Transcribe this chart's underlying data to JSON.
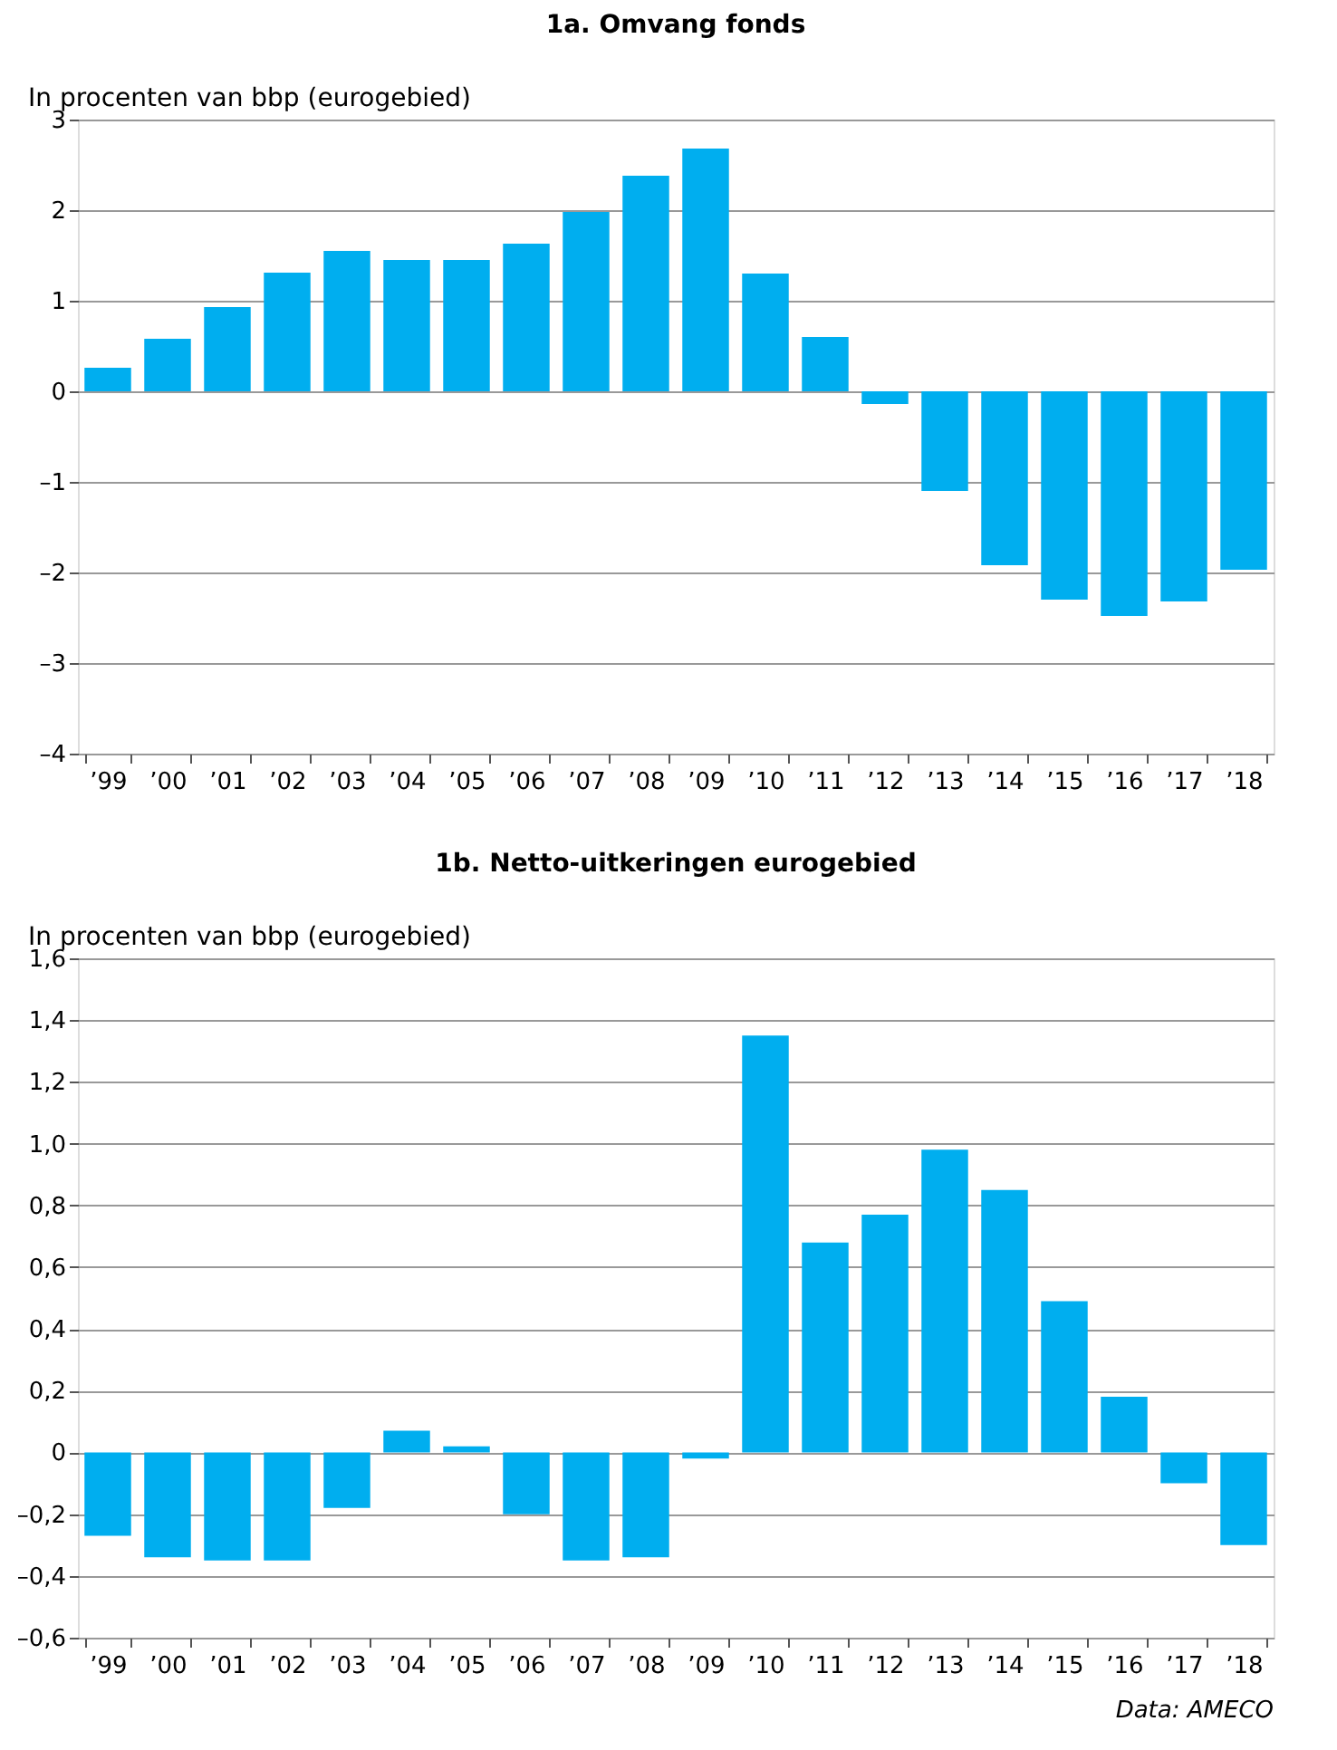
{
  "chart_data": [
    {
      "type": "bar",
      "title": "1a. Omvang fonds",
      "ylabel": "In procenten van bbp (eurogebied)",
      "categories": [
        "’99",
        "’00",
        "’01",
        "’02",
        "’03",
        "’04",
        "’05",
        "’06",
        "’07",
        "’08",
        "’09",
        "’10",
        "’11",
        "’12",
        "’13",
        "’14",
        "’15",
        "’16",
        "’17",
        "’18"
      ],
      "values": [
        0.26,
        0.58,
        0.93,
        1.31,
        1.55,
        1.45,
        1.45,
        1.63,
        1.98,
        2.38,
        2.68,
        1.3,
        0.6,
        -0.14,
        -1.1,
        -1.92,
        -2.3,
        -2.48,
        -2.32,
        -1.97
      ],
      "color": "#00aeef",
      "ylim": [
        -4,
        3
      ],
      "yticks": [
        {
          "value": -4,
          "label": "–4"
        },
        {
          "value": -3,
          "label": "–3"
        },
        {
          "value": -2,
          "label": "–2"
        },
        {
          "value": -1,
          "label": "–1"
        },
        0,
        1,
        2,
        3
      ],
      "grid": "y"
    },
    {
      "type": "bar",
      "title": "1b. Netto-uitkeringen eurogebied",
      "ylabel": "In procenten van bbp (eurogebied)",
      "categories": [
        "’99",
        "’00",
        "’01",
        "’02",
        "’03",
        "’04",
        "’05",
        "’06",
        "’07",
        "’08",
        "’09",
        "’10",
        "’11",
        "’12",
        "’13",
        "’14",
        "’15",
        "’16",
        "’17",
        "’18"
      ],
      "values": [
        -0.27,
        -0.34,
        -0.35,
        -0.35,
        -0.18,
        0.07,
        0.02,
        -0.2,
        -0.35,
        -0.34,
        -0.02,
        1.35,
        0.68,
        0.77,
        0.98,
        0.85,
        0.49,
        0.18,
        -0.1,
        -0.3
      ],
      "color": "#00aeef",
      "ylim": [
        -0.6,
        1.6
      ],
      "yticks": [
        {
          "value": -0.6,
          "label": "–0,6"
        },
        {
          "value": -0.4,
          "label": "–0,4"
        },
        {
          "value": -0.2,
          "label": "–0,2"
        },
        {
          "value": 0,
          "label": "0"
        },
        {
          "value": 0.2,
          "label": "0,2"
        },
        {
          "value": 0.4,
          "label": "0,4"
        },
        {
          "value": 0.6,
          "label": "0,6"
        },
        {
          "value": 0.8,
          "label": "0,8"
        },
        {
          "value": 1.0,
          "label": "1,0"
        },
        {
          "value": 1.2,
          "label": "1,2"
        },
        {
          "value": 1.4,
          "label": "1,4"
        },
        {
          "value": 1.6,
          "label": "1,6"
        }
      ],
      "grid": "y",
      "annotations": [
        "Data: AMECO"
      ]
    }
  ]
}
